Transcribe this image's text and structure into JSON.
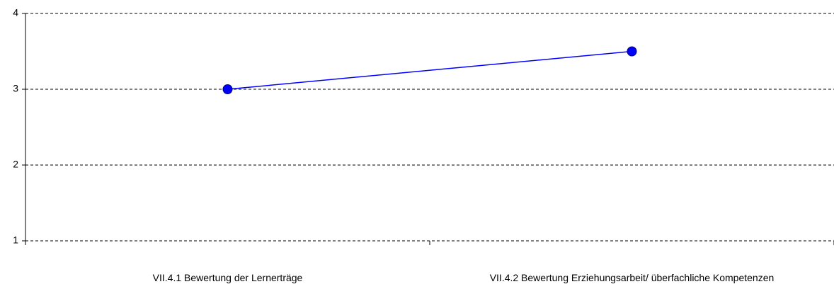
{
  "chart_data": {
    "type": "line",
    "categories": [
      "VII.4.1 Bewertung der Lernerträge",
      "VII.4.2 Bewertung Erziehungsarbeit/ überfachliche Kompetenzen"
    ],
    "series": [
      {
        "name": null,
        "color": "#0000ff",
        "values": [
          3,
          3.5
        ]
      }
    ],
    "ylim": [
      1,
      4
    ],
    "yticks": [
      1,
      2,
      3,
      4
    ],
    "grid": true
  }
}
